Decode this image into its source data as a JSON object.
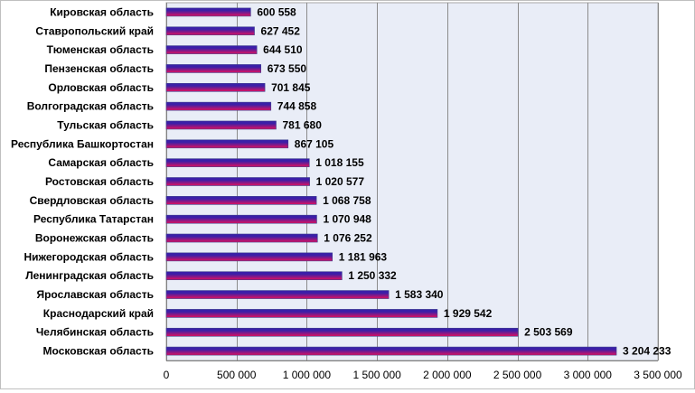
{
  "chart_data": {
    "type": "bar",
    "orientation": "horizontal",
    "categories": [
      "Кировская область",
      "Ставропольский край",
      "Тюменская область",
      "Пензенская область",
      "Орловская область",
      "Волгоградская область",
      "Тульская область",
      "Республика Башкортостан",
      "Самарская область",
      "Ростовская область",
      "Свердловская область",
      "Республика Татарстан",
      "Воронежская область",
      "Нижегородская область",
      "Ленинградская область",
      "Ярославская область",
      "Краснодарский край",
      "Челябинская область",
      "Московская область"
    ],
    "values": [
      600558,
      627452,
      644510,
      673550,
      701845,
      744858,
      781680,
      867105,
      1018155,
      1020577,
      1068758,
      1070948,
      1076252,
      1181963,
      1250332,
      1583340,
      1929542,
      2503569,
      3204233
    ],
    "value_labels": [
      "600 558",
      "627 452",
      "644 510",
      "673 550",
      "701 845",
      "744 858",
      "781 680",
      "867 105",
      "1 018 155",
      "1 020 577",
      "1 068 758",
      "1 070 948",
      "1 076 252",
      "1 181 963",
      "1 250 332",
      "1 583 340",
      "1 929 542",
      "2 503 569",
      "3 204 233"
    ],
    "xlim": [
      0,
      3500000
    ],
    "x_ticks": [
      0,
      500000,
      1000000,
      1500000,
      2000000,
      2500000,
      3000000,
      3500000
    ],
    "x_tick_labels": [
      "0",
      "500 000",
      "1 000 000",
      "1 500 000",
      "2 000 000",
      "2 500 000",
      "3 000 000",
      "3 500 000"
    ],
    "grid": "vertical",
    "legend": "none",
    "colors": {
      "plot_background": "#e9edf7",
      "gridline": "#8c8c8c",
      "bar_top": "#3b1fa8",
      "bar_bottom": "#e0115f",
      "bar_border": "#3d3f8f"
    }
  }
}
